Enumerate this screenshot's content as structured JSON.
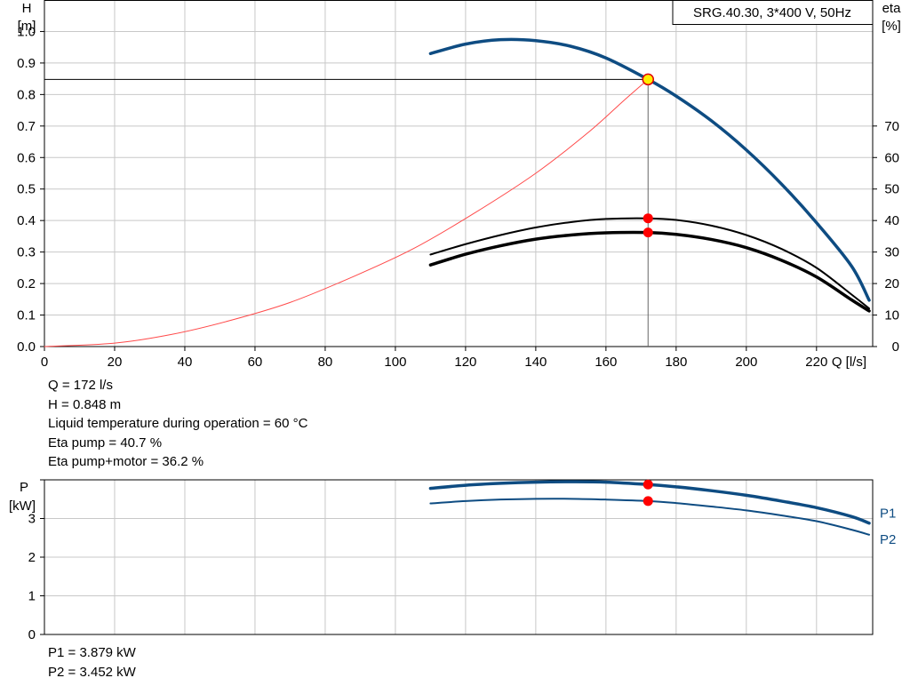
{
  "pump_label": "SRG.40.30, 3*400 V, 50Hz",
  "operating_point": [
    {
      "label": "Q",
      "value": "172 l/s"
    },
    {
      "label": "H",
      "value": "0.848 m"
    },
    {
      "label": "Liquid temperature during operation",
      "value": "60 °C"
    },
    {
      "label": "Eta pump",
      "value": "40.7 %"
    },
    {
      "label": "Eta pump+motor",
      "value": "36.2 %"
    }
  ],
  "power_readout": [
    {
      "label": "P1",
      "value": "3.879 kW"
    },
    {
      "label": "P2",
      "value": "3.452 kW"
    }
  ],
  "colors": {
    "curve_blue": "#0e4c82",
    "efficiency": "#000000",
    "system_curve": "#ff4a4a",
    "marker_red": "#ff0000",
    "marker_yellow": "#ffee00"
  },
  "chart_data": [
    {
      "type": "line",
      "xlabel": "Q [l/s]",
      "ylabel_left": [
        "H",
        "[m]"
      ],
      "ylabel_right": [
        "eta",
        "[%]"
      ],
      "xlim": [
        0,
        236
      ],
      "x_ticks": [
        0,
        20,
        40,
        60,
        80,
        100,
        120,
        140,
        160,
        180,
        200,
        220
      ],
      "ylim": [
        0,
        1.1
      ],
      "y_ticks": [
        "0.0",
        "0.1",
        "0.2",
        "0.3",
        "0.4",
        "0.5",
        "0.6",
        "0.7",
        "0.8",
        "0.9",
        "1.0"
      ],
      "ylim_right": [
        0,
        110
      ],
      "y_ticks_right": [
        0,
        10,
        20,
        30,
        40,
        50,
        60,
        70
      ],
      "grid": true,
      "series": [
        {
          "axis": "left",
          "style": "thick-blue",
          "x": [
            110,
            120,
            130,
            140,
            150,
            160,
            172,
            180,
            190,
            200,
            210,
            220,
            230,
            235
          ],
          "y": [
            0.93,
            0.96,
            0.974,
            0.971,
            0.953,
            0.916,
            0.848,
            0.795,
            0.717,
            0.624,
            0.516,
            0.393,
            0.255,
            0.147
          ]
        },
        {
          "axis": "left",
          "style": "thin-red",
          "x": [
            0,
            20,
            36,
            52,
            70,
            88,
            105,
            122,
            140,
            155,
            165,
            172
          ],
          "y": [
            0.0,
            0.011,
            0.038,
            0.08,
            0.14,
            0.222,
            0.31,
            0.42,
            0.55,
            0.68,
            0.78,
            0.848
          ]
        },
        {
          "axis": "right",
          "style": "medium-black",
          "x": [
            110,
            120,
            130,
            140,
            150,
            160,
            172,
            180,
            190,
            200,
            210,
            220,
            230,
            235
          ],
          "y": [
            29.2,
            32.5,
            35.4,
            37.8,
            39.5,
            40.5,
            40.7,
            40.2,
            38.4,
            35.4,
            31.0,
            25.0,
            16.5,
            12.1
          ]
        },
        {
          "axis": "right",
          "style": "thick-black",
          "x": [
            110,
            120,
            130,
            140,
            150,
            160,
            172,
            180,
            190,
            200,
            210,
            220,
            230,
            235
          ],
          "y": [
            25.9,
            29.3,
            32.0,
            34.1,
            35.4,
            36.1,
            36.2,
            35.6,
            34.0,
            31.4,
            27.4,
            22.1,
            14.8,
            11.3
          ]
        }
      ],
      "duty_point": {
        "x": 172,
        "y": 0.848
      },
      "markers_right": [
        40.7,
        36.2
      ]
    },
    {
      "type": "line",
      "ylabel": [
        "P",
        "[kW]"
      ],
      "xlim": [
        0,
        236
      ],
      "x_ticks": [
        0,
        20,
        40,
        60,
        80,
        100,
        120,
        140,
        160,
        180,
        200,
        220
      ],
      "ylim": [
        0,
        4.0
      ],
      "y_ticks": [
        0,
        1,
        2,
        3,
        4
      ],
      "y_tick_labels": [
        "0",
        "1",
        "2",
        "3",
        ""
      ],
      "grid": true,
      "series": [
        {
          "name": "P1",
          "style": "thick-blue",
          "x": [
            110,
            120,
            130,
            140,
            150,
            160,
            172,
            180,
            190,
            200,
            210,
            220,
            230,
            235
          ],
          "y": [
            3.78,
            3.86,
            3.91,
            3.94,
            3.95,
            3.94,
            3.879,
            3.82,
            3.72,
            3.6,
            3.45,
            3.28,
            3.05,
            2.88
          ]
        },
        {
          "name": "P2",
          "style": "medium-blue",
          "x": [
            110,
            120,
            130,
            140,
            150,
            160,
            172,
            180,
            190,
            200,
            210,
            220,
            230,
            235
          ],
          "y": [
            3.39,
            3.45,
            3.49,
            3.51,
            3.51,
            3.49,
            3.452,
            3.4,
            3.31,
            3.21,
            3.08,
            2.93,
            2.71,
            2.58
          ]
        }
      ],
      "markers": [
        3.879,
        3.452
      ],
      "marker_x": 172
    }
  ]
}
